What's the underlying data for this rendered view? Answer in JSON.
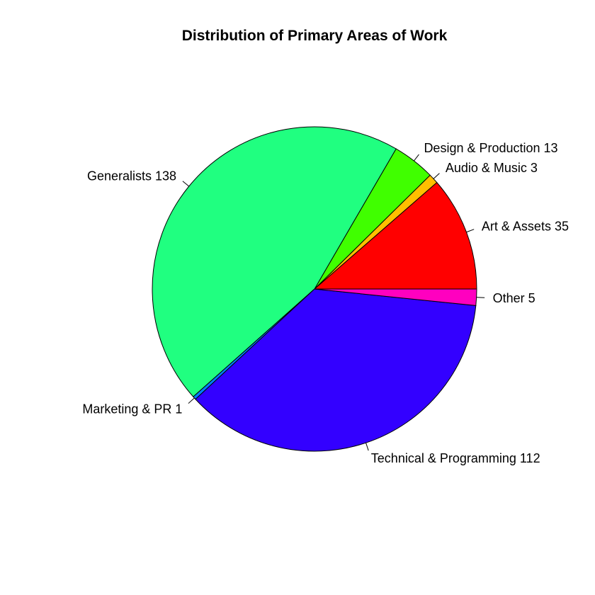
{
  "chart_data": {
    "type": "pie",
    "title": "Distribution of Primary Areas of Work",
    "start_angle_deg": 0,
    "direction": "counterclockwise",
    "slices": [
      {
        "label": "Art & Assets 35",
        "value": 35,
        "color": "#FF0000"
      },
      {
        "label": "Audio & Music 3",
        "value": 3,
        "color": "#FFBF00"
      },
      {
        "label": "Design & Production 13",
        "value": 13,
        "color": "#40FF00"
      },
      {
        "label": "Generalists 138",
        "value": 138,
        "color": "#20FF80"
      },
      {
        "label": "Marketing & PR 1",
        "value": 1,
        "color": "#0080FF"
      },
      {
        "label": "Technical & Programming 112",
        "value": 112,
        "color": "#3300FF"
      },
      {
        "label": "Other 5",
        "value": 5,
        "color": "#FF00BF"
      }
    ]
  }
}
